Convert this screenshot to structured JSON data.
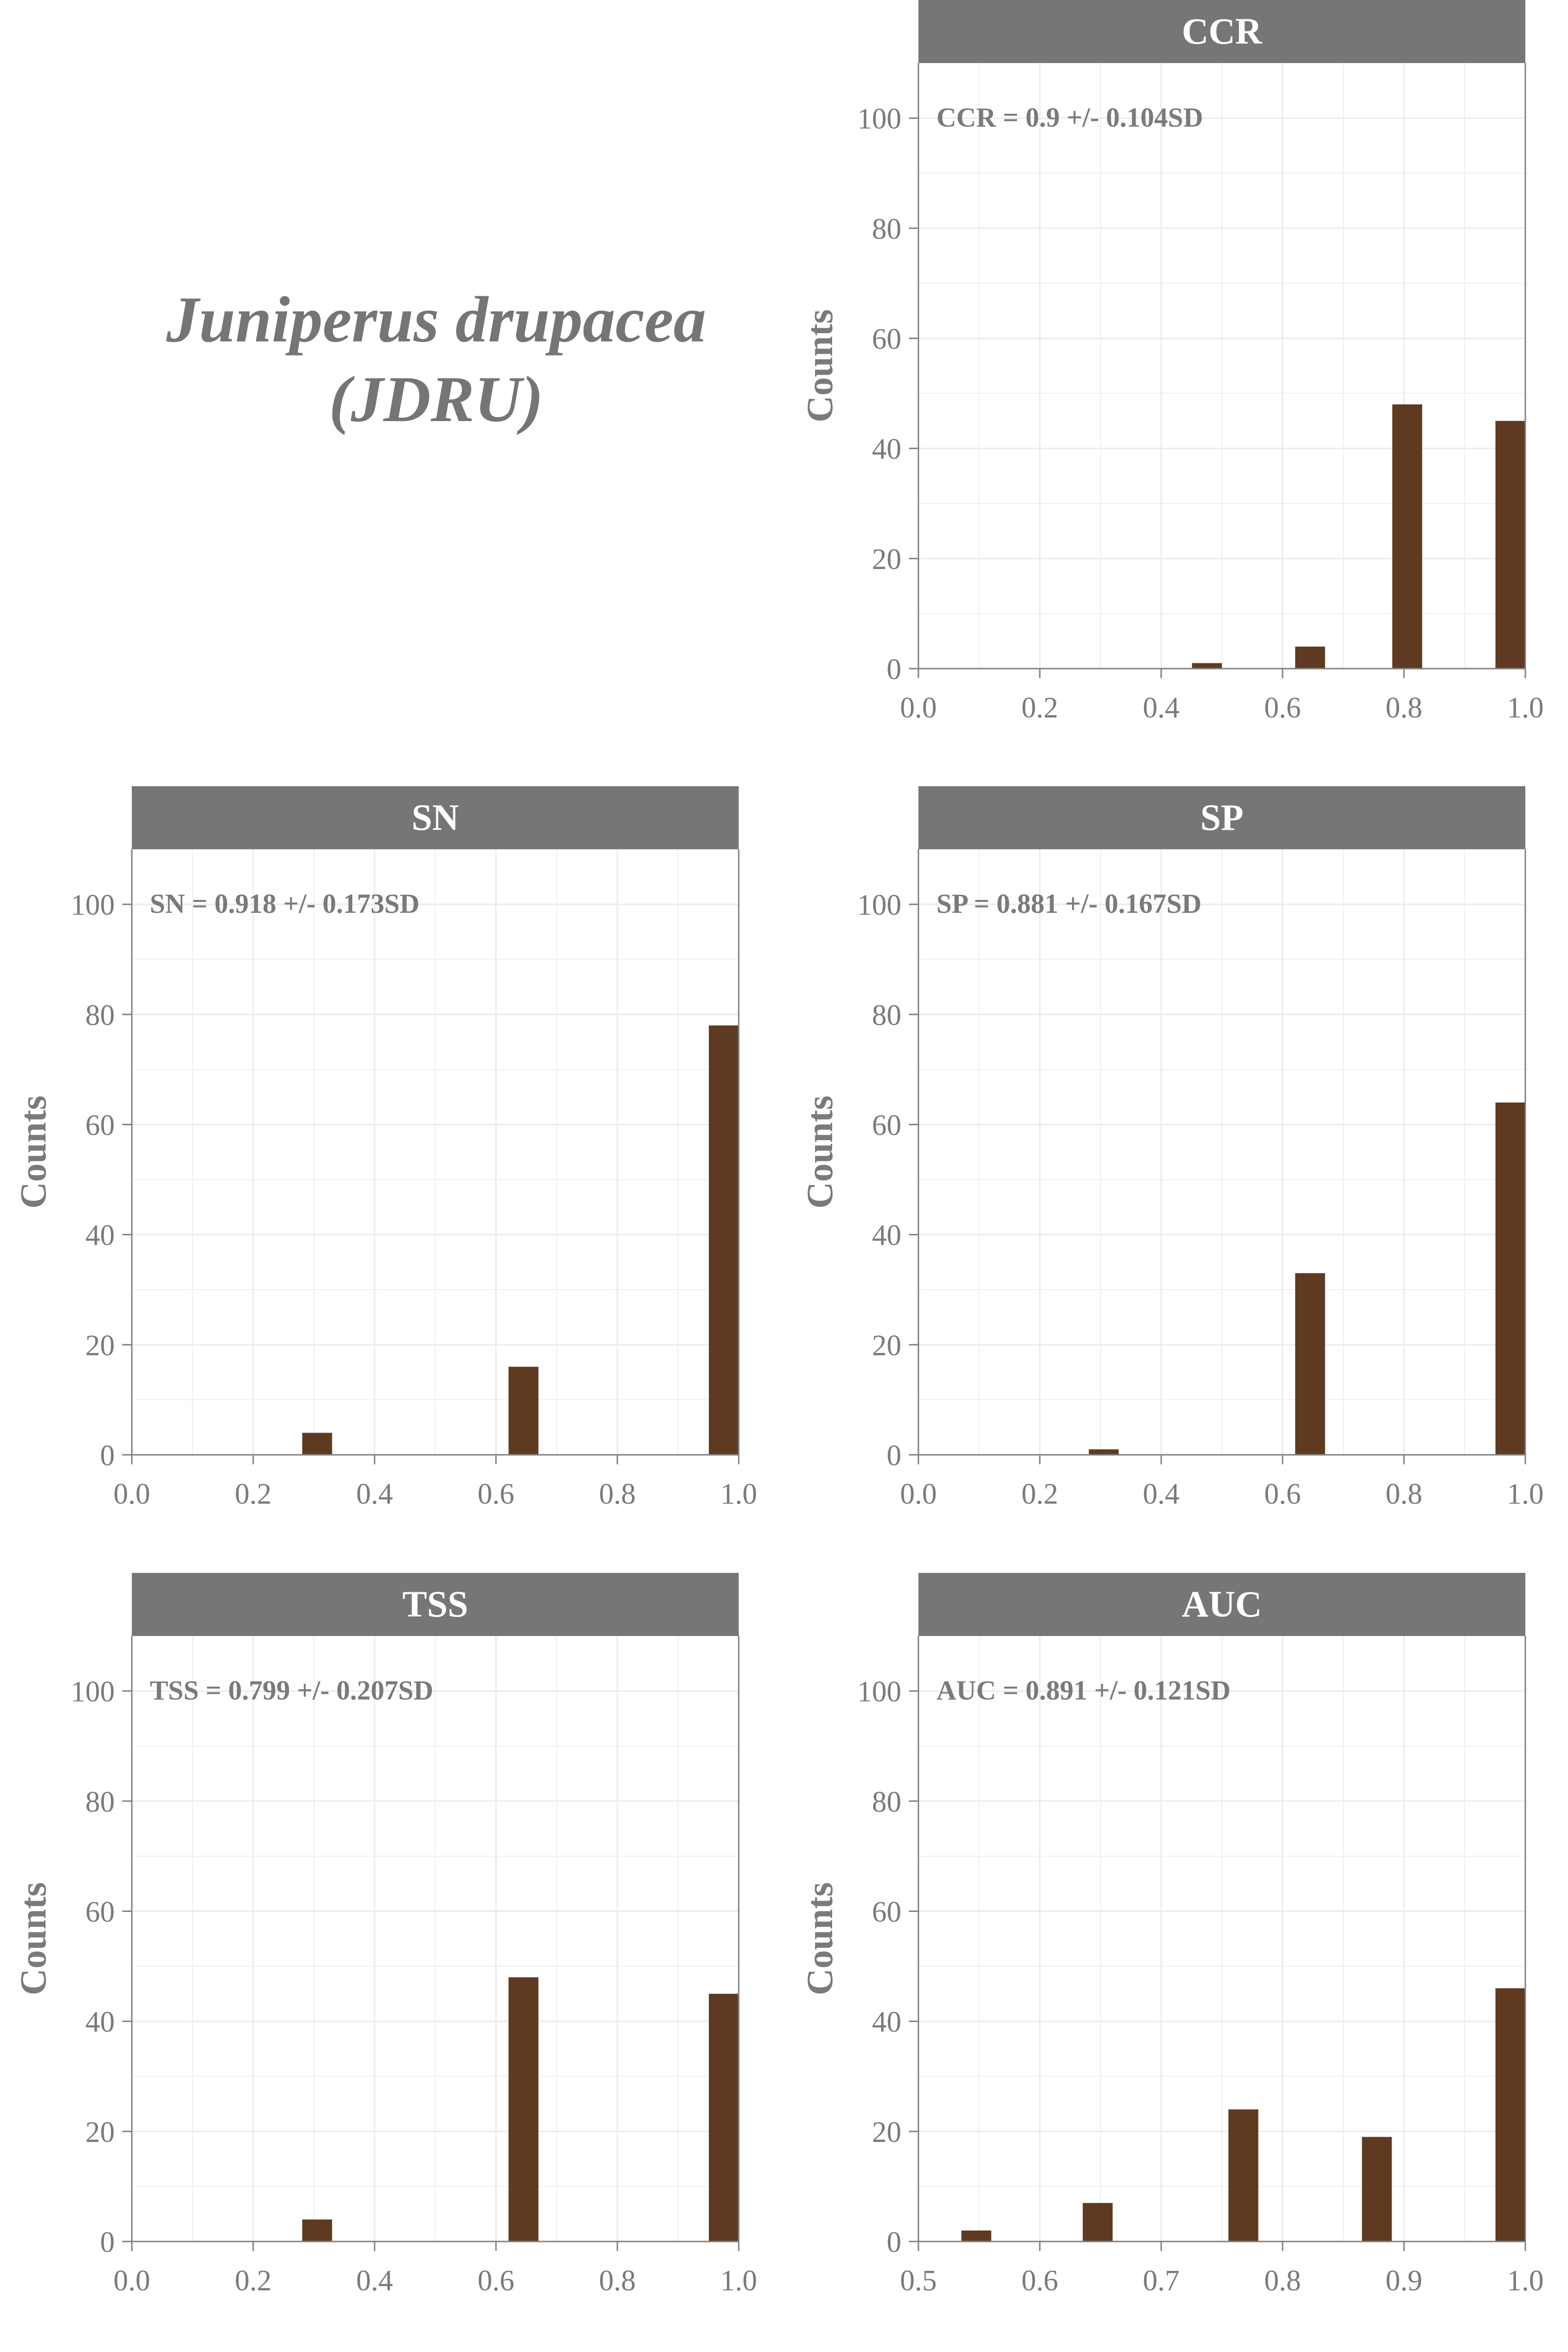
{
  "figure": {
    "species_name": "Juniperus drupacea",
    "species_code": "(JDRU)",
    "ylabel": "Counts",
    "colors": {
      "bar": "#5f3a20",
      "strip": "#767676",
      "strip_text": "#ffffff",
      "text": "#7a7a7a",
      "grid": "#ebebeb",
      "axis": "#808080"
    }
  },
  "chart_data": [
    {
      "type": "bar",
      "title": "CCR",
      "annotation": "CCR = 0.9 +/- 0.104SD",
      "ylabel": "Counts",
      "x": [
        0.0,
        0.5,
        0.67,
        0.83,
        1.0
      ],
      "values": [
        0,
        1,
        4,
        48,
        45
      ],
      "xlim": [
        0,
        1
      ],
      "xticks": [
        "0.0",
        "0.2",
        "0.4",
        "0.6",
        "0.8",
        "1.0"
      ],
      "ylim": [
        0,
        110
      ],
      "yticks": [
        "0",
        "20",
        "40",
        "60",
        "80",
        "100"
      ],
      "grid": true
    },
    {
      "type": "bar",
      "title": "SN",
      "annotation": "SN = 0.918 +/- 0.173SD",
      "ylabel": "Counts",
      "x": [
        0.0,
        0.33,
        0.67,
        1.0
      ],
      "values": [
        0,
        4,
        16,
        78
      ],
      "xlim": [
        0,
        1
      ],
      "xticks": [
        "0.0",
        "0.2",
        "0.4",
        "0.6",
        "0.8",
        "1.0"
      ],
      "ylim": [
        0,
        110
      ],
      "yticks": [
        "0",
        "20",
        "40",
        "60",
        "80",
        "100"
      ],
      "grid": true
    },
    {
      "type": "bar",
      "title": "SP",
      "annotation": "SP = 0.881 +/- 0.167SD",
      "ylabel": "Counts",
      "x": [
        0.0,
        0.33,
        0.67,
        1.0
      ],
      "values": [
        0,
        1,
        33,
        64
      ],
      "xlim": [
        0,
        1
      ],
      "xticks": [
        "0.0",
        "0.2",
        "0.4",
        "0.6",
        "0.8",
        "1.0"
      ],
      "ylim": [
        0,
        110
      ],
      "yticks": [
        "0",
        "20",
        "40",
        "60",
        "80",
        "100"
      ],
      "grid": true
    },
    {
      "type": "bar",
      "title": "TSS",
      "annotation": "TSS = 0.799 +/- 0.207SD",
      "ylabel": "Counts",
      "x": [
        0.0,
        0.33,
        0.67,
        1.0
      ],
      "values": [
        1,
        4,
        48,
        45
      ],
      "xlim": [
        0,
        1
      ],
      "xticks": [
        "0.0",
        "0.2",
        "0.4",
        "0.6",
        "0.8",
        "1.0"
      ],
      "ylim": [
        0,
        110
      ],
      "yticks": [
        "0",
        "20",
        "40",
        "60",
        "80",
        "100"
      ],
      "grid": true
    },
    {
      "type": "bar",
      "title": "AUC",
      "annotation": "AUC = 0.891 +/- 0.121SD",
      "ylabel": "Counts",
      "x": [
        0.5,
        0.56,
        0.66,
        0.78,
        0.89,
        1.0
      ],
      "values": [
        0,
        2,
        7,
        24,
        19,
        46
      ],
      "xlim": [
        0.5,
        1
      ],
      "xticks": [
        "0.5",
        "0.6",
        "0.7",
        "0.8",
        "0.9",
        "1.0"
      ],
      "ylim": [
        0,
        110
      ],
      "yticks": [
        "0",
        "20",
        "40",
        "60",
        "80",
        "100"
      ],
      "grid": true
    }
  ]
}
